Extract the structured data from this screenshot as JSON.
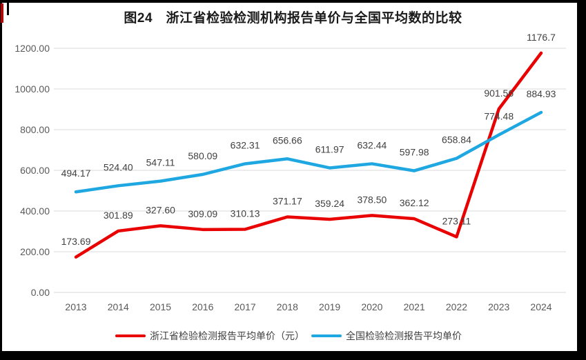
{
  "frame": {
    "border_color": "#000000",
    "accent_tick_color": "#c00000"
  },
  "chart_data": {
    "type": "line",
    "title": "图24　浙江省检验检测机构报告单价与全国平均数的比较",
    "categories": [
      "2013",
      "2014",
      "2015",
      "2016",
      "2017",
      "2018",
      "2019",
      "2020",
      "2021",
      "2022",
      "2023",
      "2024"
    ],
    "series": [
      {
        "name": "浙江省检验检测报告平均单价（元）",
        "color": "#e90000",
        "values": [
          173.69,
          301.89,
          327.6,
          309.09,
          310.13,
          371.17,
          359.24,
          378.5,
          362.12,
          273.11,
          901.56,
          1176.7
        ],
        "labels": [
          "173.69",
          "301.89",
          "327.60",
          "309.09",
          "310.13",
          "371.17",
          "359.24",
          "378.50",
          "362.12",
          "273.11",
          "901.56",
          "1176.7"
        ]
      },
      {
        "name": "全国检验检测报告平均单价",
        "color": "#1ea7e0",
        "values": [
          494.17,
          524.4,
          547.11,
          580.09,
          632.31,
          656.66,
          611.97,
          632.44,
          597.98,
          658.84,
          774.48,
          884.93
        ],
        "labels": [
          "494.17",
          "524.40",
          "547.11",
          "580.09",
          "632.31",
          "656.66",
          "611.97",
          "632.44",
          "597.98",
          "658.84",
          "774.48",
          "884.93"
        ]
      }
    ],
    "y_axis": {
      "min": 0,
      "max": 1200,
      "step": 200,
      "ticks": [
        "0.00",
        "200.00",
        "400.00",
        "600.00",
        "800.00",
        "1000.00",
        "1200.00"
      ]
    },
    "x_axis_label": "",
    "y_axis_label": "",
    "grid": true,
    "legend_position": "bottom",
    "grid_color": "#d9d9d9"
  }
}
